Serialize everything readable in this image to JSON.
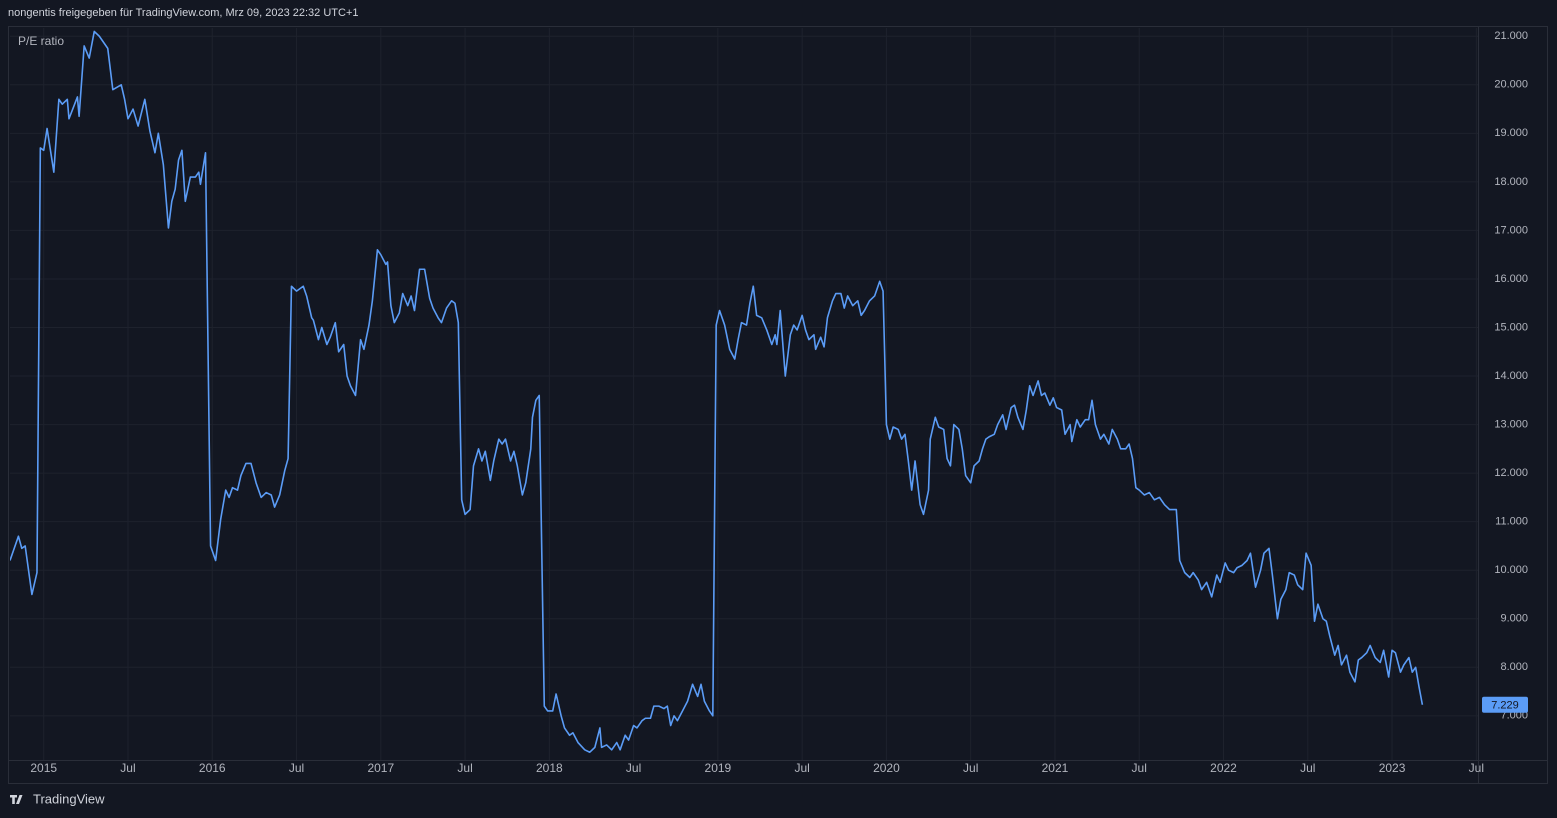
{
  "header": {
    "text": "nongentis freigegeben für TradingView.com, Mrz 09, 2023 22:32 UTC+1"
  },
  "footer": {
    "brand": "TradingView"
  },
  "chart_data": {
    "type": "line",
    "x": [
      2014.8,
      2014.85,
      2014.87,
      2014.89,
      2014.93,
      2014.96,
      2014.98,
      2015.0,
      2015.02,
      2015.06,
      2015.09,
      2015.11,
      2015.14,
      2015.15,
      2015.2,
      2015.21,
      2015.24,
      2015.27,
      2015.3,
      2015.33,
      2015.38,
      2015.41,
      2015.46,
      2015.48,
      2015.5,
      2015.53,
      2015.56,
      2015.6,
      2015.63,
      2015.66,
      2015.68,
      2015.71,
      2015.74,
      2015.76,
      2015.78,
      2015.8,
      2015.82,
      2015.84,
      2015.87,
      2015.9,
      2015.92,
      2015.93,
      2015.96,
      2015.99,
      2016.02,
      2016.05,
      2016.08,
      2016.1,
      2016.12,
      2016.15,
      2016.17,
      2016.2,
      2016.23,
      2016.26,
      2016.29,
      2016.32,
      2016.35,
      2016.37,
      2016.4,
      2016.43,
      2016.45,
      2016.47,
      2016.5,
      2016.54,
      2016.56,
      2016.59,
      2016.6,
      2016.63,
      2016.65,
      2016.68,
      2016.7,
      2016.73,
      2016.75,
      2016.78,
      2016.8,
      2016.82,
      2016.85,
      2016.88,
      2016.9,
      2016.93,
      2016.95,
      2016.98,
      2017.0,
      2017.03,
      2017.04,
      2017.06,
      2017.08,
      2017.11,
      2017.13,
      2017.16,
      2017.18,
      2017.2,
      2017.23,
      2017.26,
      2017.29,
      2017.31,
      2017.34,
      2017.36,
      2017.39,
      2017.42,
      2017.44,
      2017.46,
      2017.48,
      2017.5,
      2017.53,
      2017.55,
      2017.58,
      2017.6,
      2017.62,
      2017.65,
      2017.67,
      2017.7,
      2017.72,
      2017.74,
      2017.77,
      2017.79,
      2017.81,
      2017.84,
      2017.86,
      2017.89,
      2017.9,
      2017.92,
      2017.94,
      2017.97,
      2017.99,
      2018.02,
      2018.04,
      2018.07,
      2018.09,
      2018.12,
      2018.14,
      2018.17,
      2018.21,
      2018.24,
      2018.27,
      2018.3,
      2018.31,
      2018.34,
      2018.37,
      2018.4,
      2018.42,
      2018.45,
      2018.47,
      2018.5,
      2018.52,
      2018.55,
      2018.57,
      2018.6,
      2018.62,
      2018.65,
      2018.68,
      2018.7,
      2018.72,
      2018.74,
      2018.76,
      2018.79,
      2018.82,
      2018.85,
      2018.88,
      2018.9,
      2018.92,
      2018.95,
      2018.97,
      2018.99,
      2019.01,
      2019.04,
      2019.07,
      2019.1,
      2019.12,
      2019.14,
      2019.17,
      2019.19,
      2019.21,
      2019.23,
      2019.26,
      2019.29,
      2019.32,
      2019.34,
      2019.35,
      2019.37,
      2019.4,
      2019.43,
      2019.45,
      2019.47,
      2019.5,
      2019.52,
      2019.54,
      2019.57,
      2019.58,
      2019.61,
      2019.63,
      2019.65,
      2019.68,
      2019.7,
      2019.73,
      2019.75,
      2019.77,
      2019.8,
      2019.83,
      2019.85,
      2019.87,
      2019.9,
      2019.93,
      2019.96,
      2019.98,
      2020.0,
      2020.02,
      2020.04,
      2020.07,
      2020.09,
      2020.11,
      2020.13,
      2020.15,
      2020.17,
      2020.2,
      2020.22,
      2020.25,
      2020.26,
      2020.29,
      2020.31,
      2020.34,
      2020.36,
      2020.38,
      2020.4,
      2020.43,
      2020.45,
      2020.47,
      2020.5,
      2020.52,
      2020.55,
      2020.57,
      2020.59,
      2020.61,
      2020.64,
      2020.66,
      2020.69,
      2020.71,
      2020.74,
      2020.76,
      2020.78,
      2020.81,
      2020.83,
      2020.85,
      2020.87,
      2020.9,
      2020.92,
      2020.94,
      2020.97,
      2020.99,
      2021.01,
      2021.04,
      2021.06,
      2021.09,
      2021.1,
      2021.13,
      2021.15,
      2021.18,
      2021.2,
      2021.22,
      2021.24,
      2021.27,
      2021.29,
      2021.32,
      2021.34,
      2021.37,
      2021.39,
      2021.42,
      2021.44,
      2021.46,
      2021.48,
      2021.5,
      2021.53,
      2021.56,
      2021.59,
      2021.62,
      2021.65,
      2021.68,
      2021.72,
      2021.74,
      2021.77,
      2021.8,
      2021.82,
      2021.85,
      2021.87,
      2021.9,
      2021.93,
      2021.96,
      2021.98,
      2022.01,
      2022.03,
      2022.06,
      2022.08,
      2022.11,
      2022.14,
      2022.16,
      2022.19,
      2022.22,
      2022.24,
      2022.27,
      2022.29,
      2022.32,
      2022.34,
      2022.37,
      2022.39,
      2022.42,
      2022.44,
      2022.47,
      2022.49,
      2022.52,
      2022.54,
      2022.56,
      2022.59,
      2022.61,
      2022.63,
      2022.66,
      2022.68,
      2022.7,
      2022.73,
      2022.75,
      2022.78,
      2022.8,
      2022.82,
      2022.85,
      2022.87,
      2022.9,
      2022.93,
      2022.95,
      2022.98,
      2023.0,
      2023.02,
      2023.05,
      2023.07,
      2023.1,
      2023.12,
      2023.14,
      2023.16,
      2023.18
    ],
    "series": [
      {
        "name": "P/E ratio",
        "color": "#5b9cf6",
        "last_value_label": "7.229",
        "values": [
          10.2,
          10.7,
          10.45,
          10.5,
          9.5,
          9.95,
          18.7,
          18.65,
          19.1,
          18.2,
          19.7,
          19.6,
          19.7,
          19.3,
          19.75,
          19.35,
          20.8,
          20.55,
          21.1,
          21.0,
          20.75,
          19.9,
          20.0,
          19.7,
          19.3,
          19.5,
          19.15,
          19.7,
          19.05,
          18.6,
          19.0,
          18.35,
          17.05,
          17.6,
          17.85,
          18.45,
          18.65,
          17.6,
          18.1,
          18.1,
          18.2,
          17.95,
          18.6,
          10.5,
          10.2,
          11.05,
          11.65,
          11.5,
          11.7,
          11.65,
          11.95,
          12.2,
          12.2,
          11.8,
          11.5,
          11.6,
          11.55,
          11.3,
          11.55,
          12.05,
          12.3,
          15.85,
          15.75,
          15.85,
          15.65,
          15.2,
          15.15,
          14.75,
          15.0,
          14.65,
          14.8,
          15.1,
          14.5,
          14.65,
          14.0,
          13.8,
          13.6,
          14.75,
          14.55,
          15.05,
          15.55,
          16.6,
          16.5,
          16.3,
          16.35,
          15.45,
          15.1,
          15.3,
          15.7,
          15.45,
          15.65,
          15.35,
          16.2,
          16.2,
          15.6,
          15.4,
          15.2,
          15.1,
          15.4,
          15.55,
          15.5,
          15.1,
          11.45,
          11.15,
          11.25,
          12.15,
          12.5,
          12.25,
          12.45,
          11.85,
          12.25,
          12.7,
          12.6,
          12.7,
          12.25,
          12.45,
          12.15,
          11.55,
          11.8,
          12.5,
          13.15,
          13.5,
          13.6,
          7.2,
          7.1,
          7.1,
          7.45,
          7.0,
          6.75,
          6.6,
          6.65,
          6.45,
          6.3,
          6.25,
          6.35,
          6.75,
          6.35,
          6.4,
          6.3,
          6.45,
          6.3,
          6.6,
          6.5,
          6.8,
          6.75,
          6.9,
          6.95,
          6.95,
          7.2,
          7.2,
          7.15,
          7.2,
          6.8,
          7.0,
          6.9,
          7.1,
          7.3,
          7.65,
          7.4,
          7.65,
          7.3,
          7.1,
          7.0,
          15.05,
          15.35,
          15.05,
          14.55,
          14.35,
          14.75,
          15.1,
          15.05,
          15.5,
          15.85,
          15.25,
          15.2,
          14.95,
          14.65,
          14.85,
          14.65,
          15.35,
          14.0,
          14.85,
          15.05,
          14.95,
          15.25,
          14.95,
          14.75,
          14.85,
          14.55,
          14.8,
          14.6,
          15.2,
          15.55,
          15.7,
          15.7,
          15.4,
          15.65,
          15.45,
          15.55,
          15.25,
          15.35,
          15.55,
          15.65,
          15.95,
          15.75,
          13.0,
          12.7,
          12.95,
          12.9,
          12.7,
          12.8,
          12.25,
          11.65,
          12.25,
          11.35,
          11.15,
          11.65,
          12.7,
          13.15,
          12.95,
          12.9,
          12.3,
          12.15,
          13.0,
          12.9,
          12.5,
          11.95,
          11.8,
          12.15,
          12.25,
          12.5,
          12.7,
          12.75,
          12.8,
          13.0,
          13.2,
          12.9,
          13.35,
          13.4,
          13.15,
          12.9,
          13.3,
          13.8,
          13.6,
          13.9,
          13.6,
          13.65,
          13.4,
          13.55,
          13.35,
          13.3,
          12.8,
          13.0,
          12.65,
          13.1,
          12.95,
          13.1,
          13.1,
          13.5,
          13.0,
          12.7,
          12.8,
          12.6,
          12.9,
          12.7,
          12.5,
          12.5,
          12.6,
          12.3,
          11.7,
          11.65,
          11.55,
          11.6,
          11.45,
          11.5,
          11.35,
          11.25,
          11.25,
          10.2,
          9.95,
          9.85,
          9.95,
          9.8,
          9.6,
          9.75,
          9.45,
          9.9,
          9.75,
          10.15,
          10.0,
          9.95,
          10.05,
          10.1,
          10.2,
          10.35,
          9.65,
          10.0,
          10.35,
          10.45,
          9.9,
          9.0,
          9.4,
          9.6,
          9.95,
          9.9,
          9.7,
          9.6,
          10.35,
          10.1,
          8.95,
          9.3,
          9.0,
          8.95,
          8.65,
          8.25,
          8.45,
          8.05,
          8.25,
          7.9,
          7.7,
          8.15,
          8.2,
          8.3,
          8.45,
          8.2,
          8.1,
          8.35,
          7.8,
          8.35,
          8.3,
          7.9,
          8.05,
          8.2,
          7.9,
          8.0,
          7.6,
          7.229
        ]
      }
    ],
    "xlim": [
      2014.8,
      2023.51
    ],
    "xticks": [
      2015,
      {
        "value": 2015.5,
        "label": "Jul"
      },
      2016,
      {
        "value": 2016.5,
        "label": "Jul"
      },
      2017,
      {
        "value": 2017.5,
        "label": "Jul"
      },
      2018,
      {
        "value": 2018.5,
        "label": "Jul"
      },
      2019,
      {
        "value": 2019.5,
        "label": "Jul"
      },
      2020,
      {
        "value": 2020.5,
        "label": "Jul"
      },
      2021,
      {
        "value": 2021.5,
        "label": "Jul"
      },
      2022,
      {
        "value": 2022.5,
        "label": "Jul"
      },
      2023,
      {
        "value": 2023.5,
        "label": "Jul"
      }
    ],
    "ylim": [
      6.09,
      21.17
    ],
    "yticks": [
      {
        "value": 7,
        "label": "7.000"
      },
      {
        "value": 8,
        "label": "8.000"
      },
      {
        "value": 9,
        "label": "9.000"
      },
      {
        "value": 10,
        "label": "10.000"
      },
      {
        "value": 11,
        "label": "11.000"
      },
      {
        "value": 12,
        "label": "12.000"
      },
      {
        "value": 13,
        "label": "13.000"
      },
      {
        "value": 14,
        "label": "14.000"
      },
      {
        "value": 15,
        "label": "15.000"
      },
      {
        "value": 16,
        "label": "16.000"
      },
      {
        "value": 17,
        "label": "17.000"
      },
      {
        "value": 18,
        "label": "18.000"
      },
      {
        "value": 19,
        "label": "19.000"
      },
      {
        "value": 20,
        "label": "20.000"
      },
      {
        "value": 21,
        "label": "21.000"
      }
    ],
    "grid": true
  }
}
